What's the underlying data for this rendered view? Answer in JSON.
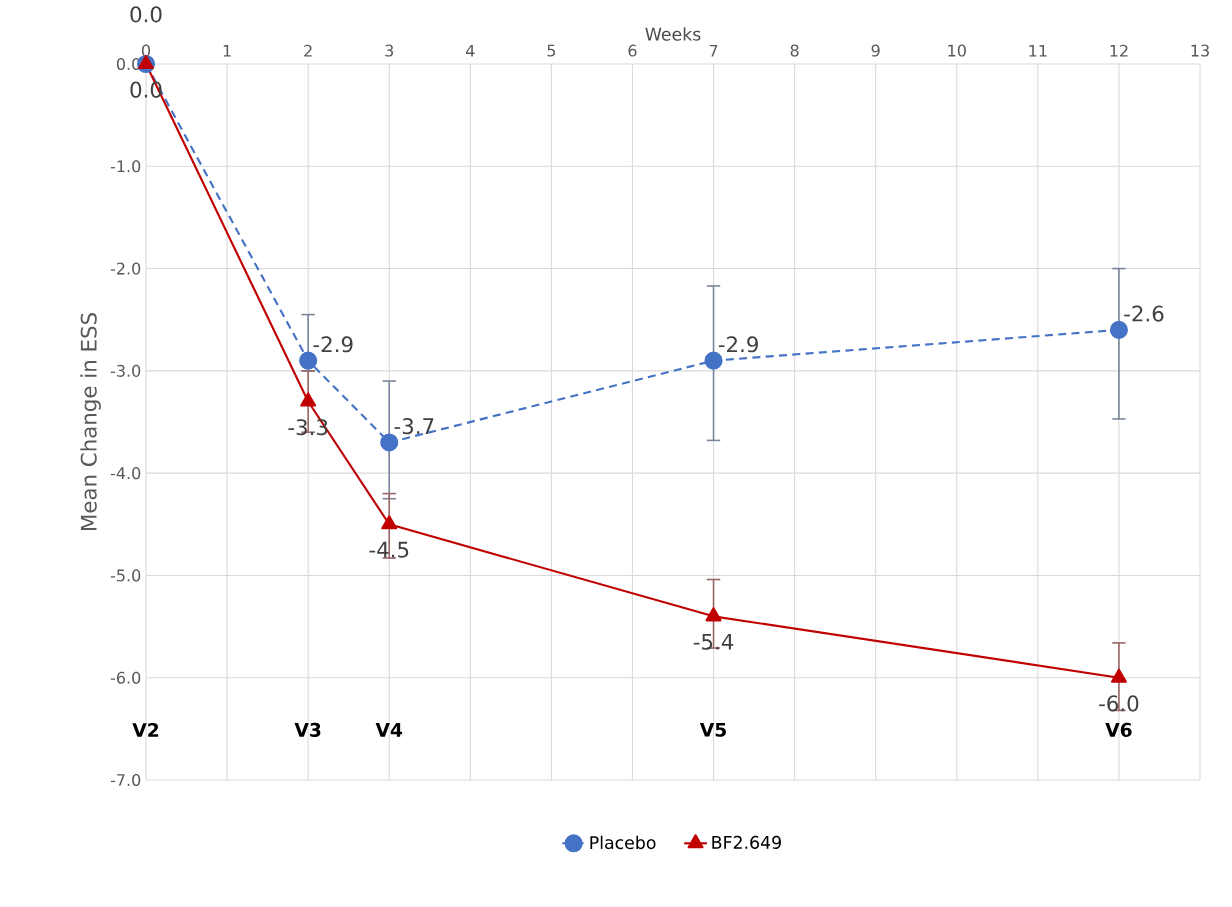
{
  "chart_data": {
    "type": "line",
    "xlabel": "Weeks",
    "ylabel": "Mean Change in ESS",
    "x": [
      0,
      2,
      3,
      7,
      12
    ],
    "series": [
      {
        "name": "Placebo",
        "color": "#4472c4",
        "marker": "circle",
        "line_style": "dashed",
        "values": [
          0,
          -2.9,
          -3.7,
          -2.9,
          -2.6
        ],
        "errors": [
          null,
          [
            -3.0,
            -2.45
          ],
          [
            -4.25,
            -3.1
          ],
          [
            -3.68,
            -2.17
          ],
          [
            -3.47,
            -2.0
          ]
        ],
        "value_labels": [
          "0.0",
          "-2.9",
          "-3.7",
          "-2.9",
          "-2.6"
        ]
      },
      {
        "name": "BF2.649",
        "color": "#c00000",
        "marker": "triangle",
        "line_style": "solid",
        "values": [
          0,
          -3.3,
          -4.5,
          -5.4,
          -6.0
        ],
        "errors": [
          null,
          [
            -3.6,
            -3.0
          ],
          [
            -4.83,
            -4.2
          ],
          [
            -5.71,
            -5.04
          ],
          [
            -6.32,
            -5.66
          ]
        ],
        "value_labels": [
          "0.0",
          "-3.3",
          "-4.5",
          "-5.4",
          "-6.0"
        ]
      }
    ],
    "xlim": [
      0,
      13
    ],
    "xticks": [
      0,
      1,
      2,
      3,
      4,
      5,
      6,
      7,
      8,
      9,
      10,
      11,
      12,
      13
    ],
    "ylim": [
      -7,
      0
    ],
    "yticks": [
      {
        "value": 0,
        "label": "0.0"
      },
      {
        "value": -1,
        "label": "-1.0"
      },
      {
        "value": -2,
        "label": "-2.0"
      },
      {
        "value": -3,
        "label": "-3.0"
      },
      {
        "value": -4,
        "label": "-4.0"
      },
      {
        "value": -5,
        "label": "-5.0"
      },
      {
        "value": -6,
        "label": "-6.0"
      },
      {
        "value": -7,
        "label": "-7.0"
      }
    ],
    "annotations": [
      "V2",
      "V3",
      "V4",
      "V5",
      "V6"
    ],
    "grid": true,
    "legend": "bottom"
  }
}
